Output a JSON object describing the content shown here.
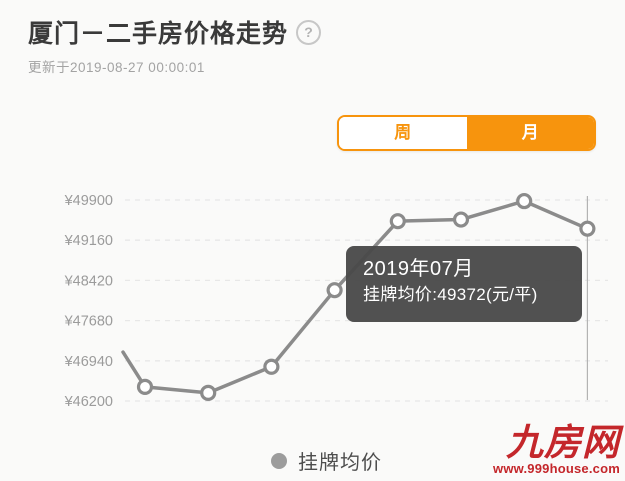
{
  "header": {
    "title": "厦门－二手房价格走势",
    "help_glyph": "?",
    "updated_at": "更新于2019-08-27 00:00:01"
  },
  "tabs": {
    "week_label": "周",
    "month_label": "月",
    "active": "月"
  },
  "tooltip": {
    "title": "2019年07月",
    "value_line": "挂牌均价:49372(元/平)"
  },
  "legend": {
    "label": "挂牌均价"
  },
  "watermark": {
    "name": "九房网",
    "url": "www.999house.com"
  },
  "colors": {
    "accent_orange": "#f7940d",
    "line_gray": "#8b8b8b",
    "grid_gray": "#e7e7e7",
    "tick_label_gray": "#9b9b9b",
    "tooltip_bg": "#4a4a4a",
    "logo_red": "#c4272b"
  },
  "chart_data": {
    "type": "line",
    "title": "厦门－二手房价格走势",
    "xlabel": "",
    "ylabel": "挂牌均价(元/平)",
    "ylim": [
      46200,
      49900
    ],
    "y_ticks": [
      49900,
      49160,
      48420,
      47680,
      46940,
      46200
    ],
    "y_tick_labels": [
      "¥49900",
      "¥49160",
      "¥48420",
      "¥47680",
      "¥46940",
      "¥46200"
    ],
    "grid": "dashed-horizontal",
    "legend_position": "bottom-center",
    "series": [
      {
        "name": "挂牌均价",
        "unit": "元/平",
        "clipped_lead_in_value": 47100,
        "values": [
          46460,
          46350,
          46830,
          48240,
          49510,
          49540,
          49880,
          49372
        ]
      }
    ],
    "selected_point": {
      "index": 7,
      "label": "2019年07月",
      "value": 49372
    }
  }
}
